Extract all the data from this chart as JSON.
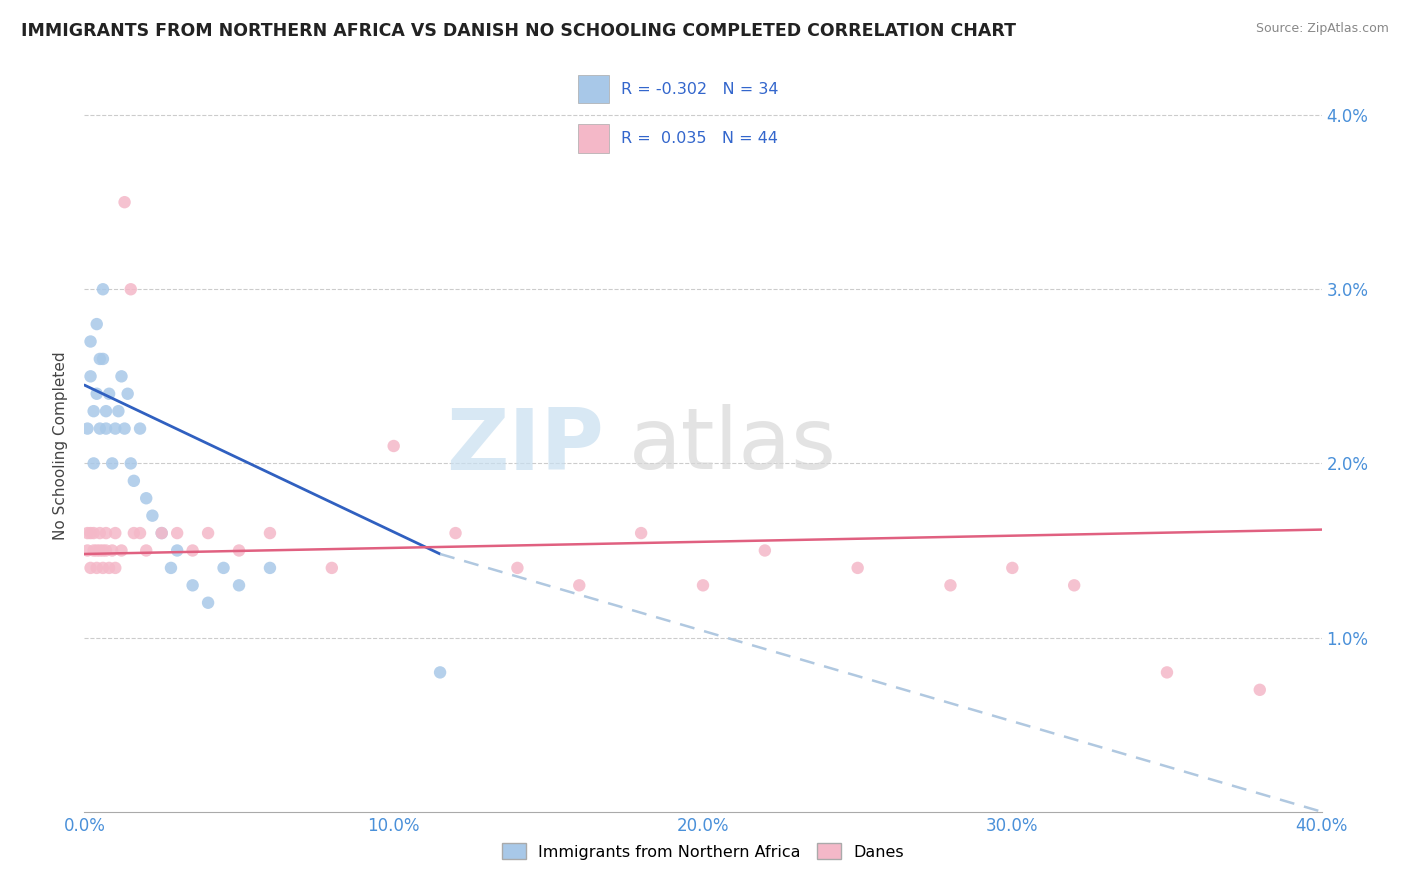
{
  "title": "IMMIGRANTS FROM NORTHERN AFRICA VS DANISH NO SCHOOLING COMPLETED CORRELATION CHART",
  "source": "Source: ZipAtlas.com",
  "ylabel": "No Schooling Completed",
  "legend_label1": "Immigrants from Northern Africa",
  "legend_label2": "Danes",
  "R1": "-0.302",
  "N1": "34",
  "R2": "0.035",
  "N2": "44",
  "color_blue": "#a8c8e8",
  "color_pink": "#f4b8c8",
  "color_blue_line": "#3060c0",
  "color_pink_line": "#e06080",
  "color_dashed": "#b0c8e0",
  "xlim": [
    0.0,
    0.4
  ],
  "ylim": [
    0.0,
    0.042
  ],
  "blue_x": [
    0.001,
    0.002,
    0.002,
    0.003,
    0.003,
    0.004,
    0.004,
    0.005,
    0.005,
    0.006,
    0.006,
    0.007,
    0.007,
    0.008,
    0.009,
    0.01,
    0.011,
    0.012,
    0.013,
    0.014,
    0.015,
    0.016,
    0.018,
    0.02,
    0.022,
    0.025,
    0.028,
    0.03,
    0.035,
    0.04,
    0.045,
    0.05,
    0.06,
    0.115
  ],
  "blue_y": [
    0.022,
    0.025,
    0.027,
    0.023,
    0.02,
    0.028,
    0.024,
    0.026,
    0.022,
    0.03,
    0.026,
    0.023,
    0.022,
    0.024,
    0.02,
    0.022,
    0.023,
    0.025,
    0.022,
    0.024,
    0.02,
    0.019,
    0.022,
    0.018,
    0.017,
    0.016,
    0.014,
    0.015,
    0.013,
    0.012,
    0.014,
    0.013,
    0.014,
    0.008
  ],
  "pink_x": [
    0.001,
    0.001,
    0.002,
    0.002,
    0.003,
    0.003,
    0.004,
    0.004,
    0.005,
    0.005,
    0.006,
    0.006,
    0.007,
    0.007,
    0.008,
    0.009,
    0.01,
    0.01,
    0.012,
    0.013,
    0.015,
    0.016,
    0.018,
    0.02,
    0.025,
    0.03,
    0.035,
    0.04,
    0.05,
    0.06,
    0.08,
    0.1,
    0.12,
    0.14,
    0.16,
    0.18,
    0.2,
    0.22,
    0.25,
    0.28,
    0.3,
    0.32,
    0.35,
    0.38
  ],
  "pink_y": [
    0.016,
    0.015,
    0.016,
    0.014,
    0.016,
    0.015,
    0.015,
    0.014,
    0.016,
    0.015,
    0.015,
    0.014,
    0.016,
    0.015,
    0.014,
    0.015,
    0.016,
    0.014,
    0.015,
    0.035,
    0.03,
    0.016,
    0.016,
    0.015,
    0.016,
    0.016,
    0.015,
    0.016,
    0.015,
    0.016,
    0.014,
    0.021,
    0.016,
    0.014,
    0.013,
    0.016,
    0.013,
    0.015,
    0.014,
    0.013,
    0.014,
    0.013,
    0.008,
    0.007
  ],
  "blue_line_x0": 0.0,
  "blue_line_x_solid_end": 0.115,
  "blue_line_x_dashed_end": 0.4,
  "blue_line_y_start": 0.0245,
  "blue_line_y_cross": 0.0148,
  "blue_line_y_dashed_end": 0.0,
  "pink_line_y_start": 0.0148,
  "pink_line_y_end": 0.0162
}
